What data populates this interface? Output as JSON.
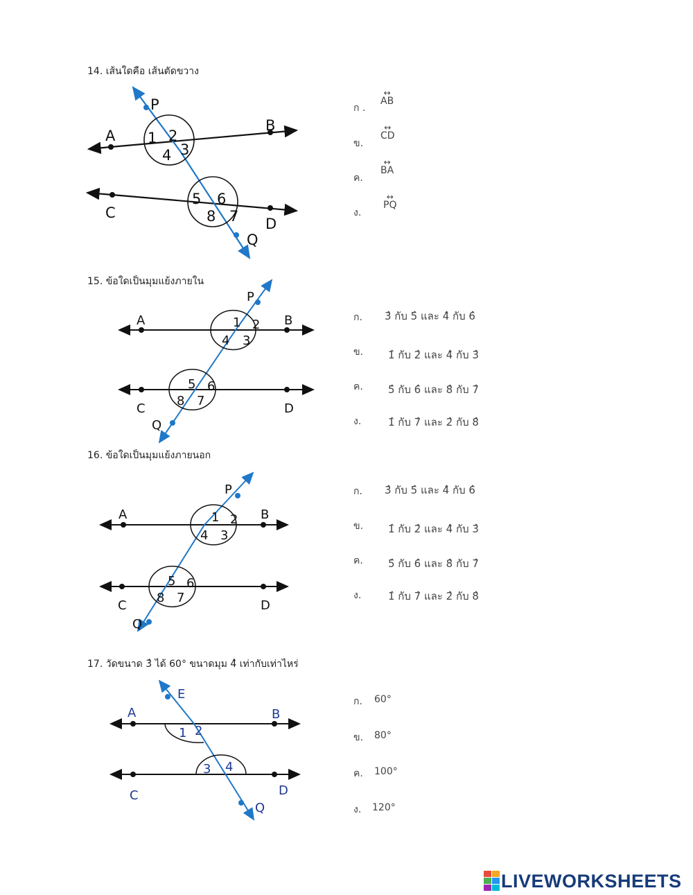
{
  "q14": {
    "question": "14.  เส้นใดคือ เส้นตัดขวาง",
    "options": [
      {
        "prefix": "ก .",
        "value": "AB"
      },
      {
        "prefix": "ข.",
        "value": "CD"
      },
      {
        "prefix": "ค.",
        "value": "BA"
      },
      {
        "prefix": "ง.",
        "value": "PQ"
      }
    ],
    "points": {
      "P": "P",
      "A": "A",
      "B": "B",
      "C": "C",
      "D": "D",
      "Q": "Q"
    },
    "angles": [
      "1",
      "2",
      "3",
      "4",
      "5",
      "6",
      "7",
      "8"
    ]
  },
  "q15": {
    "question": "15.  ข้อใดเป็นมุมแย้งภายใน",
    "options": [
      {
        "prefix": "ก.",
        "value": "3̂ กับ 5̂ และ 4̂ กับ 6̂"
      },
      {
        "prefix": "ข.",
        "value": "1̂ กับ 2̂ และ 4̂ กับ 3̂"
      },
      {
        "prefix": "ค.",
        "value": "5̂ กับ 6̂ และ 8̂ กับ 7̂"
      },
      {
        "prefix": "ง.",
        "value": "1̂ กับ 7̂ และ 2̂ กับ 8̂"
      }
    ],
    "points": {
      "P": "P",
      "A": "A",
      "B": "B",
      "C": "C",
      "D": "D",
      "Q": "Q"
    },
    "angles": [
      "1",
      "2",
      "3",
      "4",
      "5",
      "6",
      "7",
      "8"
    ]
  },
  "q16": {
    "question": "16.  ข้อใดเป็นมุมแย้งภายนอก",
    "options": [
      {
        "prefix": "ก.",
        "value": "3̂ กับ 5̂ และ 4̂ กับ 6̂"
      },
      {
        "prefix": "ข.",
        "value": "1̂ กับ 2̂ และ 4̂ กับ 3̂"
      },
      {
        "prefix": "ค.",
        "value": "5̂ กับ 6̂ และ 8̂ กับ 7̂"
      },
      {
        "prefix": "ง.",
        "value": "1̂ กับ 7̂ และ 2̂ กับ 8̂"
      }
    ],
    "points": {
      "P": "P",
      "A": "A",
      "B": "B",
      "C": "C",
      "D": "D",
      "Q": "Q"
    },
    "angles": [
      "1",
      "2",
      "3",
      "4",
      "5",
      "6",
      "7",
      "8"
    ]
  },
  "q17": {
    "question": "17.  วัดขนาด 3̂ ได้ 60°  ขนาดมุม 4̂  เท่ากับเท่าไหร่",
    "options": [
      {
        "prefix": "ก.",
        "value": "60°"
      },
      {
        "prefix": "ข.",
        "value": "80°"
      },
      {
        "prefix": "ค.",
        "value": "100°"
      },
      {
        "prefix": "ง.",
        "value": "120°"
      }
    ],
    "points": {
      "E": "E",
      "A": "A",
      "B": "B",
      "C": "C",
      "D": "D",
      "Q": "Q"
    },
    "angles": [
      "1",
      "2",
      "3",
      "4"
    ]
  },
  "logo": {
    "text": "LIVEWORKSHEETS"
  },
  "colors": {
    "transversal": "#1f78c8",
    "label_blue": "#1f3a93",
    "line": "#111111"
  }
}
